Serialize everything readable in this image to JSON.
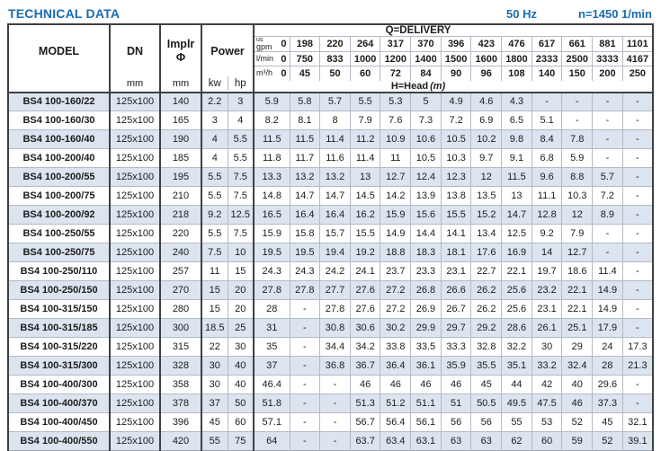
{
  "header": {
    "title": "TECHNICAL DATA",
    "frequency": "50 Hz",
    "speed": "n=1450 1/min"
  },
  "colors": {
    "accent_blue": "#1a6bb0",
    "row_stripe": "#dbe4ef",
    "grid_thin": "#b3bac6",
    "grid_dark": "#3d4145"
  },
  "table": {
    "columns": {
      "model": "MODEL",
      "dn": "DN",
      "dn_unit": "mm",
      "impeller_line1": "Implr",
      "impeller_line2": "Φ",
      "impeller_unit": "mm",
      "power": "Power",
      "power_unit_kw": "kw",
      "power_unit_hp": "hp",
      "delivery_title": "Q=DELIVERY",
      "head_title": "H=Head",
      "head_unit": "(m)"
    },
    "delivery_scales": [
      {
        "sup": "us",
        "label": "gpm",
        "values": [
          "0",
          "198",
          "220",
          "264",
          "317",
          "370",
          "396",
          "423",
          "476",
          "617",
          "661",
          "881",
          "1101"
        ]
      },
      {
        "sup": "",
        "label": "l/min",
        "values": [
          "0",
          "750",
          "833",
          "1000",
          "1200",
          "1400",
          "1500",
          "1600",
          "1800",
          "2333",
          "2500",
          "3333",
          "4167"
        ]
      },
      {
        "sup": "",
        "label": "m³/h",
        "values": [
          "0",
          "45",
          "50",
          "60",
          "72",
          "84",
          "90",
          "96",
          "108",
          "140",
          "150",
          "200",
          "250"
        ]
      }
    ],
    "rows": [
      {
        "model": "BS4 100-160/22",
        "dn": "125x100",
        "impeller": "140",
        "kw": "2.2",
        "hp": "3",
        "head": [
          "5.9",
          "5.8",
          "5.7",
          "5.5",
          "5.3",
          "5",
          "4.9",
          "4.6",
          "4.3",
          "-",
          "-",
          "-",
          "-"
        ]
      },
      {
        "model": "BS4 100-160/30",
        "dn": "125x100",
        "impeller": "165",
        "kw": "3",
        "hp": "4",
        "head": [
          "8.2",
          "8.1",
          "8",
          "7.9",
          "7.6",
          "7.3",
          "7.2",
          "6.9",
          "6.5",
          "5.1",
          "-",
          "-",
          "-"
        ]
      },
      {
        "model": "BS4 100-160/40",
        "dn": "125x100",
        "impeller": "190",
        "kw": "4",
        "hp": "5.5",
        "head": [
          "11.5",
          "11.5",
          "11.4",
          "11.2",
          "10.9",
          "10.6",
          "10.5",
          "10.2",
          "9.8",
          "8.4",
          "7.8",
          "-",
          "-"
        ]
      },
      {
        "model": "BS4 100-200/40",
        "dn": "125x100",
        "impeller": "185",
        "kw": "4",
        "hp": "5.5",
        "head": [
          "11.8",
          "11.7",
          "11.6",
          "11.4",
          "11",
          "10.5",
          "10.3",
          "9.7",
          "9.1",
          "6.8",
          "5.9",
          "-",
          "-"
        ]
      },
      {
        "model": "BS4 100-200/55",
        "dn": "125x100",
        "impeller": "195",
        "kw": "5.5",
        "hp": "7.5",
        "head": [
          "13.3",
          "13.2",
          "13.2",
          "13",
          "12.7",
          "12.4",
          "12.3",
          "12",
          "11.5",
          "9.6",
          "8.8",
          "5.7",
          "-"
        ]
      },
      {
        "model": "BS4 100-200/75",
        "dn": "125x100",
        "impeller": "210",
        "kw": "5.5",
        "hp": "7.5",
        "head": [
          "14.8",
          "14.7",
          "14.7",
          "14.5",
          "14.2",
          "13.9",
          "13.8",
          "13.5",
          "13",
          "11.1",
          "10.3",
          "7.2",
          "-"
        ]
      },
      {
        "model": "BS4 100-200/92",
        "dn": "125x100",
        "impeller": "218",
        "kw": "9.2",
        "hp": "12.5",
        "head": [
          "16.5",
          "16.4",
          "16.4",
          "16.2",
          "15.9",
          "15.6",
          "15.5",
          "15.2",
          "14.7",
          "12.8",
          "12",
          "8.9",
          "-"
        ]
      },
      {
        "model": "BS4 100-250/55",
        "dn": "125x100",
        "impeller": "220",
        "kw": "5.5",
        "hp": "7.5",
        "head": [
          "15.9",
          "15.8",
          "15.7",
          "15.5",
          "14.9",
          "14.4",
          "14.1",
          "13.4",
          "12.5",
          "9.2",
          "7.9",
          "-",
          "-"
        ]
      },
      {
        "model": "BS4 100-250/75",
        "dn": "125x100",
        "impeller": "240",
        "kw": "7.5",
        "hp": "10",
        "head": [
          "19.5",
          "19.5",
          "19.4",
          "19.2",
          "18.8",
          "18.3",
          "18.1",
          "17.6",
          "16.9",
          "14",
          "12.7",
          "-",
          "-"
        ]
      },
      {
        "model": "BS4 100-250/110",
        "dn": "125x100",
        "impeller": "257",
        "kw": "11",
        "hp": "15",
        "head": [
          "24.3",
          "24.3",
          "24.2",
          "24.1",
          "23.7",
          "23.3",
          "23.1",
          "22.7",
          "22.1",
          "19.7",
          "18.6",
          "11.4",
          "-"
        ]
      },
      {
        "model": "BS4 100-250/150",
        "dn": "125x100",
        "impeller": "270",
        "kw": "15",
        "hp": "20",
        "head": [
          "27.8",
          "27.8",
          "27.7",
          "27.6",
          "27.2",
          "26.8",
          "26.6",
          "26.2",
          "25.6",
          "23.2",
          "22.1",
          "14.9",
          "-"
        ]
      },
      {
        "model": "BS4 100-315/150",
        "dn": "125x100",
        "impeller": "280",
        "kw": "15",
        "hp": "20",
        "head": [
          "28",
          "-",
          "27.8",
          "27.6",
          "27.2",
          "26.9",
          "26.7",
          "26.2",
          "25.6",
          "23.1",
          "22.1",
          "14.9",
          "-"
        ]
      },
      {
        "model": "BS4 100-315/185",
        "dn": "125x100",
        "impeller": "300",
        "kw": "18.5",
        "hp": "25",
        "head": [
          "31",
          "-",
          "30.8",
          "30.6",
          "30.2",
          "29.9",
          "29.7",
          "29.2",
          "28.6",
          "26.1",
          "25.1",
          "17.9",
          "-"
        ]
      },
      {
        "model": "BS4 100-315/220",
        "dn": "125x100",
        "impeller": "315",
        "kw": "22",
        "hp": "30",
        "head": [
          "35",
          "-",
          "34.4",
          "34.2",
          "33.8",
          "33.5",
          "33.3",
          "32.8",
          "32.2",
          "30",
          "29",
          "24",
          "17.3"
        ]
      },
      {
        "model": "BS4 100-315/300",
        "dn": "125x100",
        "impeller": "328",
        "kw": "30",
        "hp": "40",
        "head": [
          "37",
          "-",
          "36.8",
          "36.7",
          "36.4",
          "36.1",
          "35.9",
          "35.5",
          "35.1",
          "33.2",
          "32.4",
          "28",
          "21.3"
        ]
      },
      {
        "model": "BS4 100-400/300",
        "dn": "125x100",
        "impeller": "358",
        "kw": "30",
        "hp": "40",
        "head": [
          "46.4",
          "-",
          "-",
          "46",
          "46",
          "46",
          "46",
          "45",
          "44",
          "42",
          "40",
          "29.6",
          "-"
        ]
      },
      {
        "model": "BS4 100-400/370",
        "dn": "125x100",
        "impeller": "378",
        "kw": "37",
        "hp": "50",
        "head": [
          "51.8",
          "-",
          "-",
          "51.3",
          "51.2",
          "51.1",
          "51",
          "50.5",
          "49.5",
          "47.5",
          "46",
          "37.3",
          "-"
        ]
      },
      {
        "model": "BS4 100-400/450",
        "dn": "125x100",
        "impeller": "396",
        "kw": "45",
        "hp": "60",
        "head": [
          "57.1",
          "-",
          "-",
          "56.7",
          "56.4",
          "56.1",
          "56",
          "56",
          "55",
          "53",
          "52",
          "45",
          "32.1"
        ]
      },
      {
        "model": "BS4 100-400/550",
        "dn": "125x100",
        "impeller": "420",
        "kw": "55",
        "hp": "75",
        "head": [
          "64",
          "-",
          "-",
          "63.7",
          "63.4",
          "63.1",
          "63",
          "63",
          "62",
          "60",
          "59",
          "52",
          "39.1"
        ]
      }
    ]
  }
}
